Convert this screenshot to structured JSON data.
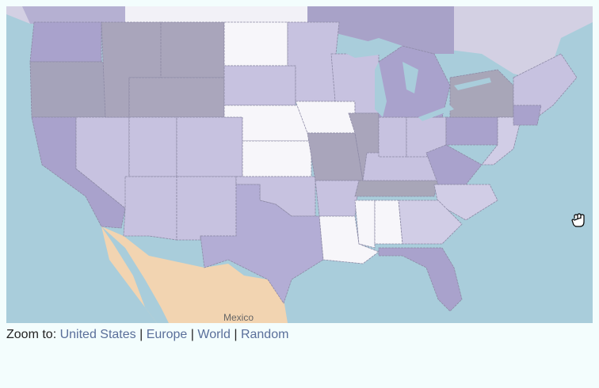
{
  "map": {
    "country_label": "Mexico"
  },
  "zoom_bar": {
    "label": "Zoom to:",
    "separator": "|",
    "links": [
      "United States",
      "Europe",
      "World",
      "Random"
    ]
  }
}
